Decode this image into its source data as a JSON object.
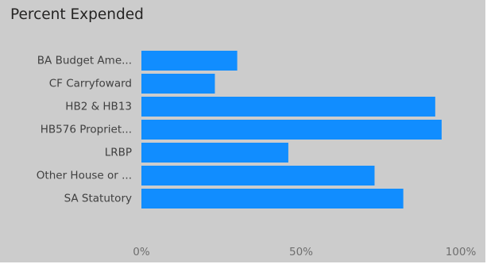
{
  "chart_data": {
    "type": "bar",
    "orientation": "horizontal",
    "title": "Percent Expended",
    "categories": [
      "BA Budget Ame...",
      "CF Carryfoward",
      "HB2 & HB13",
      "HB576 Propriet...",
      "LRBP",
      "Other House or ...",
      "SA Statutory"
    ],
    "values": [
      0.3,
      0.23,
      0.92,
      0.94,
      0.46,
      0.73,
      0.82
    ],
    "xlim": [
      0,
      1
    ],
    "x_ticks": [
      {
        "value": 0,
        "label": "0%"
      },
      {
        "value": 0.5,
        "label": "50%"
      },
      {
        "value": 1,
        "label": "100%"
      }
    ],
    "xlabel": "",
    "ylabel": "",
    "grid": false,
    "bar_color": "#118dff",
    "background_color": "#cccccc"
  }
}
